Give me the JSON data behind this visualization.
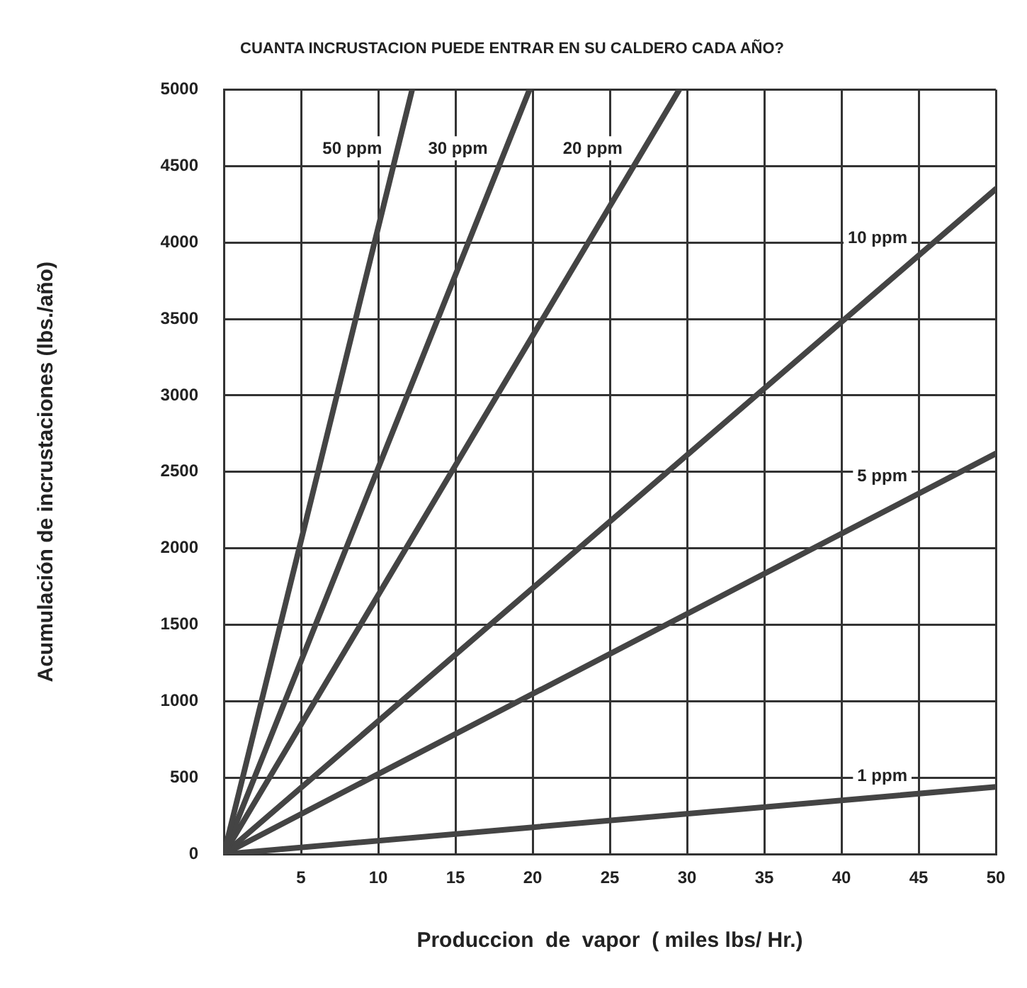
{
  "chart_data": {
    "type": "line",
    "title": "CUANTA INCRUSTACION PUEDE ENTRAR EN SU CALDERO CADA AÑO?",
    "xlabel": "Produccion  de  vapor  ( miles lbs/ Hr.)",
    "ylabel": "Acumulación de incrustaciones (lbs./año)",
    "xlim": [
      0,
      50
    ],
    "xticks": [
      5,
      10,
      15,
      20,
      25,
      30,
      35,
      40,
      45,
      50
    ],
    "ylim": [
      0,
      5000
    ],
    "yticks": [
      0,
      500,
      1000,
      1500,
      2000,
      2500,
      3000,
      3500,
      4000,
      4500,
      5000
    ],
    "grid": true,
    "legend": false,
    "marker": "none",
    "line_style": "solid",
    "series": [
      {
        "name": "50 ppm",
        "color": "#444444",
        "x": [
          0,
          12.2
        ],
        "values": [
          0,
          5000
        ]
      },
      {
        "name": "30 ppm",
        "color": "#444444",
        "x": [
          0,
          19.8
        ],
        "values": [
          0,
          5000
        ]
      },
      {
        "name": "20 ppm",
        "color": "#444444",
        "x": [
          0,
          29.5
        ],
        "values": [
          0,
          5000
        ]
      },
      {
        "name": "10 ppm",
        "color": "#444444",
        "x": [
          0,
          50
        ],
        "values": [
          0,
          4350
        ]
      },
      {
        "name": "5 ppm",
        "color": "#444444",
        "x": [
          0,
          50
        ],
        "values": [
          0,
          2620
        ]
      },
      {
        "name": "1 ppm",
        "color": "#444444",
        "x": [
          0,
          50
        ],
        "values": [
          0,
          440
        ]
      }
    ]
  }
}
